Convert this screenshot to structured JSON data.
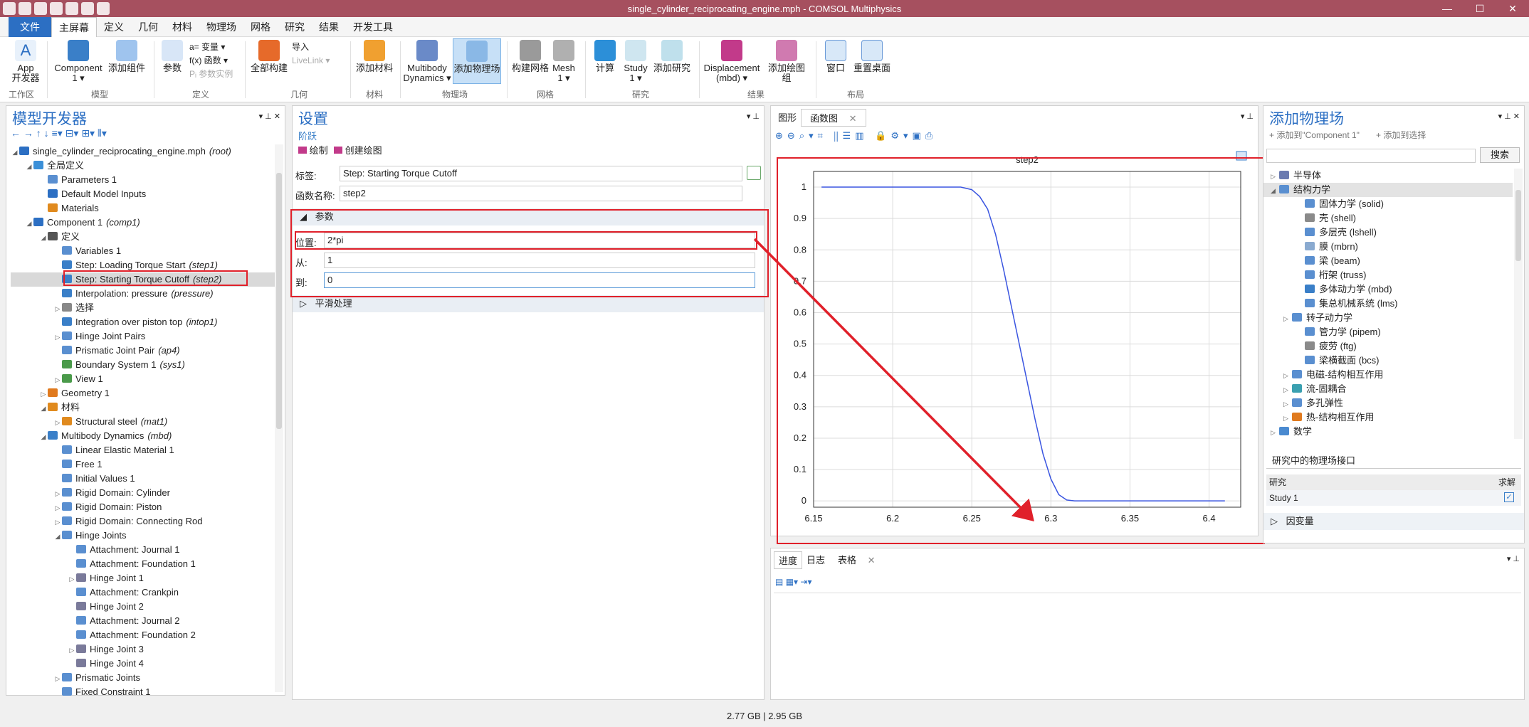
{
  "window": {
    "title": "single_cylinder_reciprocating_engine.mph - COMSOL Multiphysics"
  },
  "menu": [
    "文件",
    "主屏幕",
    "定义",
    "几何",
    "材料",
    "物理场",
    "网格",
    "研究",
    "结果",
    "开发工具"
  ],
  "ribbon": {
    "app_builder": [
      "App",
      "开发器"
    ],
    "component": [
      "Component",
      "1 ▾"
    ],
    "add_component": "添加组件",
    "parameters": "参数",
    "variables": "a= 变量 ▾",
    "functions": "f(x) 函数 ▾",
    "param_case": "Pᵢ 参数实例",
    "build_all": "全部构建",
    "import": "导入",
    "livelink": "LiveLink ▾",
    "add_material": "添加材料",
    "multibody": [
      "Multibody",
      "Dynamics ▾"
    ],
    "add_physics": "添加物理场",
    "build_mesh": "构建网格",
    "mesh": [
      "Mesh",
      "1 ▾"
    ],
    "compute": "计算",
    "study": [
      "Study",
      "1 ▾"
    ],
    "add_study": "添加研究",
    "displacement": [
      "Displacement",
      "(mbd) ▾"
    ],
    "add_plot_group": "添加绘图组",
    "windows": "窗口",
    "reset_desktop": "重置桌面",
    "groups": [
      "工作区",
      "模型",
      "定义",
      "几何",
      "材料",
      "物理场",
      "网格",
      "研究",
      "结果",
      "布局"
    ]
  },
  "model_builder": {
    "title": "模型开发器",
    "tree": [
      {
        "level": 0,
        "twist": "◢",
        "label": "single_cylinder_reciprocating_engine.mph",
        "tag": "(root)",
        "color": "#2c6fc3"
      },
      {
        "level": 1,
        "twist": "◢",
        "label": "全局定义",
        "tag": "",
        "color": "#3a8fd8"
      },
      {
        "level": 2,
        "twist": "",
        "label": "Parameters 1",
        "tag": "",
        "color": "#5a8fd0"
      },
      {
        "level": 2,
        "twist": "",
        "label": "Default Model Inputs",
        "tag": "",
        "color": "#2c6fc3"
      },
      {
        "level": 2,
        "twist": "",
        "label": "Materials",
        "tag": "",
        "color": "#e08a1e"
      },
      {
        "level": 1,
        "twist": "◢",
        "label": "Component 1",
        "tag": "(comp1)",
        "color": "#2c6fc3"
      },
      {
        "level": 2,
        "twist": "◢",
        "label": "定义",
        "tag": "",
        "color": "#555"
      },
      {
        "level": 3,
        "twist": "",
        "label": "Variables 1",
        "tag": "",
        "color": "#5a8fd0"
      },
      {
        "level": 3,
        "twist": "",
        "label": "Step: Loading Torque Start",
        "tag": "(step1)",
        "color": "#3a7fc8"
      },
      {
        "level": 3,
        "twist": "",
        "label": "Step: Starting Torque Cutoff",
        "tag": "(step2)",
        "color": "#3a7fc8",
        "selected": true
      },
      {
        "level": 3,
        "twist": "",
        "label": "Interpolation: pressure",
        "tag": "(pressure)",
        "color": "#3a7fc8"
      },
      {
        "level": 3,
        "twist": "▷",
        "label": "选择",
        "tag": "",
        "color": "#888"
      },
      {
        "level": 3,
        "twist": "",
        "label": "Integration over piston top",
        "tag": "(intop1)",
        "color": "#3a7fc8"
      },
      {
        "level": 3,
        "twist": "▷",
        "label": "Hinge Joint Pairs",
        "tag": "",
        "color": "#5a8fd0"
      },
      {
        "level": 3,
        "twist": "",
        "label": "Prismatic Joint Pair",
        "tag": "(ap4)",
        "color": "#5a8fd0"
      },
      {
        "level": 3,
        "twist": "",
        "label": "Boundary System 1",
        "tag": "(sys1)",
        "color": "#4a9a4a"
      },
      {
        "level": 3,
        "twist": "▷",
        "label": "View 1",
        "tag": "",
        "color": "#4a9a4a"
      },
      {
        "level": 2,
        "twist": "▷",
        "label": "Geometry 1",
        "tag": "",
        "color": "#e07a1e"
      },
      {
        "level": 2,
        "twist": "◢",
        "label": "材料",
        "tag": "",
        "color": "#e08a1e"
      },
      {
        "level": 3,
        "twist": "▷",
        "label": "Structural steel",
        "tag": "(mat1)",
        "color": "#e08a1e"
      },
      {
        "level": 2,
        "twist": "◢",
        "label": "Multibody Dynamics",
        "tag": "(mbd)",
        "color": "#3a7fc8"
      },
      {
        "level": 3,
        "twist": "",
        "label": "Linear Elastic Material 1",
        "tag": "",
        "color": "#5a8fd0"
      },
      {
        "level": 3,
        "twist": "",
        "label": "Free 1",
        "tag": "",
        "color": "#5a8fd0"
      },
      {
        "level": 3,
        "twist": "",
        "label": "Initial Values 1",
        "tag": "",
        "color": "#5a8fd0"
      },
      {
        "level": 3,
        "twist": "▷",
        "label": "Rigid Domain: Cylinder",
        "tag": "",
        "color": "#5a8fd0"
      },
      {
        "level": 3,
        "twist": "▷",
        "label": "Rigid Domain: Piston",
        "tag": "",
        "color": "#5a8fd0"
      },
      {
        "level": 3,
        "twist": "▷",
        "label": "Rigid Domain: Connecting Rod",
        "tag": "",
        "color": "#5a8fd0"
      },
      {
        "level": 3,
        "twist": "◢",
        "label": "Hinge Joints",
        "tag": "",
        "color": "#5a8fd0"
      },
      {
        "level": 4,
        "twist": "",
        "label": "Attachment: Journal 1",
        "tag": "",
        "color": "#5a8fd0"
      },
      {
        "level": 4,
        "twist": "",
        "label": "Attachment: Foundation 1",
        "tag": "",
        "color": "#5a8fd0"
      },
      {
        "level": 4,
        "twist": "▷",
        "label": "Hinge Joint 1",
        "tag": "",
        "color": "#7a7a9a"
      },
      {
        "level": 4,
        "twist": "",
        "label": "Attachment: Crankpin",
        "tag": "",
        "color": "#5a8fd0"
      },
      {
        "level": 4,
        "twist": "",
        "label": "Hinge Joint 2",
        "tag": "",
        "color": "#7a7a9a"
      },
      {
        "level": 4,
        "twist": "",
        "label": "Attachment: Journal 2",
        "tag": "",
        "color": "#5a8fd0"
      },
      {
        "level": 4,
        "twist": "",
        "label": "Attachment: Foundation 2",
        "tag": "",
        "color": "#5a8fd0"
      },
      {
        "level": 4,
        "twist": "▷",
        "label": "Hinge Joint 3",
        "tag": "",
        "color": "#7a7a9a"
      },
      {
        "level": 4,
        "twist": "",
        "label": "Hinge Joint 4",
        "tag": "",
        "color": "#7a7a9a"
      },
      {
        "level": 3,
        "twist": "▷",
        "label": "Prismatic Joints",
        "tag": "",
        "color": "#5a8fd0"
      },
      {
        "level": 3,
        "twist": "",
        "label": "Fixed Constraint 1",
        "tag": "",
        "color": "#5a8fd0"
      }
    ]
  },
  "settings": {
    "title": "设置",
    "subtitle": "阶跃",
    "plot_btn": "绘制",
    "create_plot_btn": "创建绘图",
    "label_label": "标签:",
    "label_value": "Step: Starting Torque Cutoff",
    "fn_name_label": "函数名称:",
    "fn_name_value": "step2",
    "params_section": "参数",
    "location_label": "位置:",
    "location_value": "2*pi",
    "from_label": "从:",
    "from_value": "1",
    "to_label": "到:",
    "to_value": "0",
    "smoothing_section": "平滑处理"
  },
  "graphics": {
    "tab1": "图形",
    "tab2": "函数图"
  },
  "chart_data": {
    "type": "line",
    "title": "step2",
    "xlim": [
      6.15,
      6.42
    ],
    "ylim": [
      -0.02,
      1.05
    ],
    "xticks": [
      "6.15",
      "6.2",
      "6.25",
      "6.3",
      "6.35",
      "6.4"
    ],
    "yticks": [
      "0",
      "0.1",
      "0.2",
      "0.3",
      "0.4",
      "0.5",
      "0.6",
      "0.7",
      "0.8",
      "0.9",
      "1"
    ],
    "grid": true,
    "series": [
      {
        "color": "#3a55e0",
        "x": [
          6.155,
          6.18,
          6.2,
          6.22,
          6.24,
          6.243,
          6.25,
          6.255,
          6.26,
          6.265,
          6.27,
          6.275,
          6.28,
          6.285,
          6.29,
          6.295,
          6.3,
          6.305,
          6.31,
          6.315,
          6.32,
          6.33,
          6.35,
          6.38,
          6.41
        ],
        "y": [
          1,
          1,
          1,
          1,
          1,
          1,
          0.992,
          0.97,
          0.93,
          0.85,
          0.74,
          0.62,
          0.5,
          0.38,
          0.26,
          0.15,
          0.07,
          0.02,
          0.003,
          0,
          0,
          0,
          0,
          0,
          0
        ]
      }
    ]
  },
  "add_physics": {
    "title": "添加物理场",
    "add_to": "添加到\"Component 1\"",
    "add_to_selection": "添加到选择",
    "search_btn": "搜索",
    "items": [
      {
        "twist": "▷",
        "label": "半导体",
        "indent": 0,
        "color": "#6a7ab0"
      },
      {
        "twist": "◢",
        "label": "结构力学",
        "indent": 0,
        "color": "#5a8fd0",
        "selected": true
      },
      {
        "twist": "",
        "label": "固体力学 (solid)",
        "indent": 2,
        "color": "#5a8fd0"
      },
      {
        "twist": "",
        "label": "壳 (shell)",
        "indent": 2,
        "color": "#8a8a8a"
      },
      {
        "twist": "",
        "label": "多层壳 (lshell)",
        "indent": 2,
        "color": "#5a8fd0"
      },
      {
        "twist": "",
        "label": "膜 (mbrn)",
        "indent": 2,
        "color": "#8aaad0"
      },
      {
        "twist": "",
        "label": "梁 (beam)",
        "indent": 2,
        "color": "#5a8fd0"
      },
      {
        "twist": "",
        "label": "桁架 (truss)",
        "indent": 2,
        "color": "#5a8fd0"
      },
      {
        "twist": "",
        "label": "多体动力学 (mbd)",
        "indent": 2,
        "color": "#3a7fc8"
      },
      {
        "twist": "",
        "label": "集总机械系统 (lms)",
        "indent": 2,
        "color": "#5a8fd0"
      },
      {
        "twist": "▷",
        "label": "转子动力学",
        "indent": 1,
        "color": "#5a8fd0"
      },
      {
        "twist": "",
        "label": "管力学 (pipem)",
        "indent": 2,
        "color": "#5a8fd0"
      },
      {
        "twist": "",
        "label": "疲劳 (ftg)",
        "indent": 2,
        "color": "#8a8a8a"
      },
      {
        "twist": "",
        "label": "梁横截面 (bcs)",
        "indent": 2,
        "color": "#5a8fd0"
      },
      {
        "twist": "▷",
        "label": "电磁-结构相互作用",
        "indent": 1,
        "color": "#5a8fd0"
      },
      {
        "twist": "▷",
        "label": "流-固耦合",
        "indent": 1,
        "color": "#3aa0b0"
      },
      {
        "twist": "▷",
        "label": "多孔弹性",
        "indent": 1,
        "color": "#5a8fd0"
      },
      {
        "twist": "▷",
        "label": "热-结构相互作用",
        "indent": 1,
        "color": "#e07a1e"
      },
      {
        "twist": "▷",
        "label": "数学",
        "indent": 0,
        "color": "#4a8ad0"
      }
    ],
    "study_section": "研究中的物理场接口",
    "col_study": "研究",
    "col_solve": "求解",
    "study_row": "Study 1",
    "dependent_vars": "因变量"
  },
  "bottom_panel": {
    "tabs": [
      "进度",
      "日志",
      "表格"
    ]
  },
  "status": {
    "memory": "2.77 GB | 2.95 GB"
  }
}
